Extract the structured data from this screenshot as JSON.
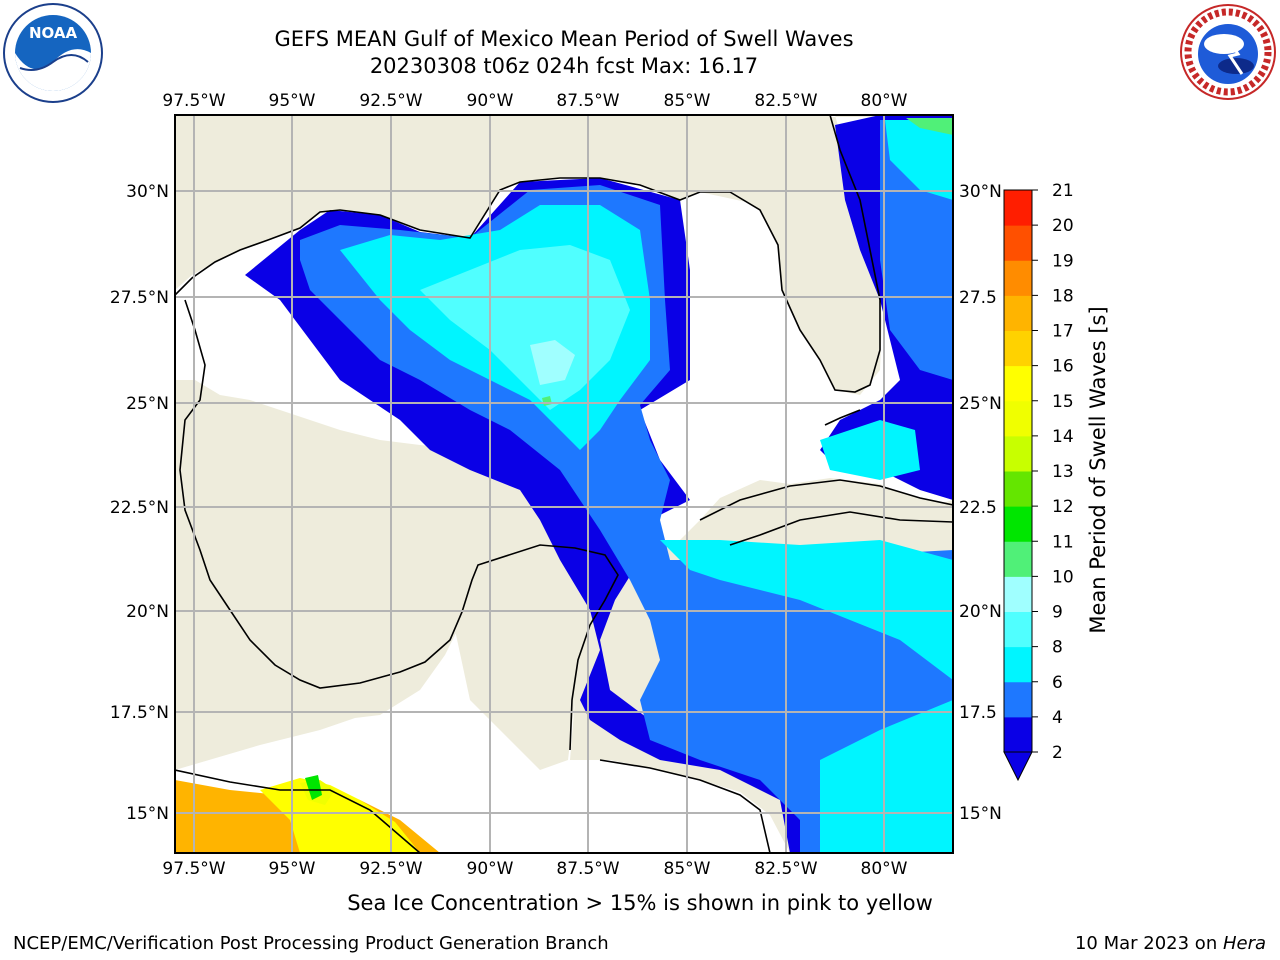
{
  "title_line1": "GEFS MEAN Gulf of Mexico Mean Period of Swell Waves",
  "title_line2": "20230308 t06z 024h fcst   Max: 16.17",
  "lon_ticks": [
    "97.5°W",
    "95°W",
    "92.5°W",
    "90°W",
    "87.5°W",
    "85°W",
    "82.5°W",
    "80°W"
  ],
  "lat_ticks": [
    "30°N",
    "27.5°N",
    "25°N",
    "22.5°N",
    "20°N",
    "17.5°N",
    "15°N"
  ],
  "lat_ticks_right": [
    "30°N",
    "27.5",
    "25°N",
    "22.5",
    "20°N",
    "17.5",
    "15°N"
  ],
  "colorbar": {
    "label": "Mean Period of Swell Waves [s]",
    "ticks": [
      "21",
      "20",
      "19",
      "18",
      "17",
      "16",
      "15",
      "14",
      "13",
      "12",
      "11",
      "10",
      "9",
      "8",
      "6",
      "4",
      "2"
    ],
    "levels": [
      2,
      4,
      6,
      8,
      9,
      10,
      11,
      12,
      13,
      14,
      15,
      16,
      17,
      18,
      19,
      20,
      21
    ],
    "colors": [
      "#0a00e6",
      "#1e78ff",
      "#00f5ff",
      "#50ffff",
      "#a0ffff",
      "#50f078",
      "#00e600",
      "#64e600",
      "#c8ff00",
      "#f0ff00",
      "#ffff00",
      "#ffd200",
      "#ffb400",
      "#ff8c00",
      "#ff5000",
      "#ff1e00"
    ],
    "extend_color": "#0a00e6"
  },
  "colors": {
    "land": "#eeecdc",
    "ocean_nodata": "#ffffff",
    "grid": "#b4b4b4",
    "coast": "#000000"
  },
  "bottom_note": "Sea Ice Concentration > 15% is shown in pink to yellow",
  "footer_left": "NCEP/EMC/Verification Post Processing Product Generation Branch",
  "footer_right_text": "10 Mar 2023 on ",
  "footer_right_italic": "Hera",
  "logos": {
    "left": "noaa-logo",
    "right": "nws-logo",
    "left_text": "NOAA",
    "right_text": "NATIONAL WEATHER SERVICE"
  }
}
